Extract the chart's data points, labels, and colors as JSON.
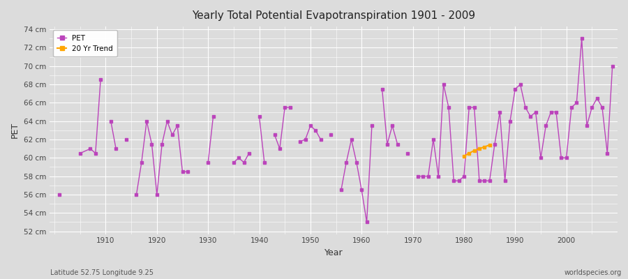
{
  "title": "Yearly Total Potential Evapotranspiration 1901 - 2009",
  "xlabel": "Year",
  "ylabel": "PET",
  "subtitle_left": "Latitude 52.75 Longitude 9.25",
  "watermark": "worldspecies.org",
  "ylim": [
    52,
    74
  ],
  "ytick_step": 2,
  "xlim": [
    1899,
    2010
  ],
  "pet_color": "#BB44BB",
  "trend_color": "#FFA500",
  "background_color": "#DCDCDC",
  "plot_bg_color": "#DCDCDC",
  "grid_color": "#FFFFFF",
  "years": [
    1901,
    1905,
    1907,
    1908,
    1909,
    1911,
    1912,
    1914,
    1916,
    1917,
    1918,
    1919,
    1920,
    1921,
    1922,
    1923,
    1924,
    1925,
    1926,
    1930,
    1931,
    1935,
    1936,
    1937,
    1938,
    1940,
    1941,
    1943,
    1944,
    1945,
    1946,
    1948,
    1949,
    1950,
    1951,
    1952,
    1954,
    1956,
    1957,
    1958,
    1959,
    1960,
    1961,
    1962,
    1964,
    1965,
    1966,
    1967,
    1969,
    1971,
    1972,
    1973,
    1974,
    1975,
    1976,
    1977,
    1978,
    1979,
    1980,
    1981,
    1982,
    1983,
    1984,
    1985,
    1986,
    1987,
    1988,
    1989,
    1990,
    1991,
    1992,
    1993,
    1994,
    1995,
    1996,
    1997,
    1998,
    1999,
    2000,
    2001,
    2002,
    2003,
    2004,
    2005,
    2006,
    2007,
    2008,
    2009
  ],
  "pet_values": [
    56.0,
    60.5,
    61.0,
    60.5,
    68.5,
    64.0,
    61.0,
    62.0,
    56.0,
    59.5,
    64.0,
    61.5,
    56.0,
    61.5,
    64.0,
    62.5,
    63.5,
    58.5,
    58.5,
    59.5,
    64.5,
    59.5,
    60.0,
    59.5,
    60.5,
    64.5,
    59.5,
    62.5,
    61.0,
    65.5,
    65.5,
    61.8,
    62.0,
    63.5,
    63.0,
    62.0,
    62.5,
    56.5,
    59.5,
    62.0,
    59.5,
    56.5,
    53.0,
    63.5,
    67.5,
    61.5,
    63.5,
    61.5,
    60.5,
    58.0,
    58.0,
    58.0,
    62.0,
    58.0,
    68.0,
    65.5,
    57.5,
    57.5,
    58.0,
    65.5,
    65.5,
    57.5,
    57.5,
    57.5,
    61.5,
    65.0,
    57.5,
    64.0,
    67.5,
    68.0,
    65.5,
    64.5,
    65.0,
    60.0,
    63.5,
    65.0,
    65.0,
    60.0,
    60.0,
    65.5,
    66.0,
    73.0,
    63.5,
    65.5,
    66.5,
    65.5,
    60.5,
    70.0
  ],
  "connected_segments": [
    [
      1901
    ],
    [
      1905,
      1907,
      1908,
      1909
    ],
    [
      1911,
      1912
    ],
    [
      1914
    ],
    [
      1916,
      1917,
      1918,
      1919,
      1920,
      1921,
      1922,
      1923,
      1924,
      1925,
      1926
    ],
    [
      1930,
      1931
    ],
    [
      1935,
      1936,
      1937,
      1938
    ],
    [
      1940,
      1941
    ],
    [
      1943,
      1944,
      1945,
      1946
    ],
    [
      1948,
      1949,
      1950,
      1951,
      1952
    ],
    [
      1954
    ],
    [
      1956,
      1957,
      1958,
      1959,
      1960,
      1961,
      1962
    ],
    [
      1964,
      1965,
      1966,
      1967
    ],
    [
      1969
    ],
    [
      1971,
      1972,
      1973,
      1974,
      1975,
      1976,
      1977,
      1978,
      1979,
      1980,
      1981,
      1982,
      1983,
      1984,
      1985,
      1986,
      1987,
      1988,
      1989,
      1990,
      1991,
      1992,
      1993,
      1994,
      1995,
      1996,
      1997,
      1998,
      1999,
      2000,
      2001,
      2002,
      2003,
      2004,
      2005,
      2006,
      2007,
      2008,
      2009
    ]
  ],
  "trend_years": [
    1980,
    1981,
    1982,
    1983,
    1984,
    1985
  ],
  "trend_values": [
    60.2,
    60.5,
    60.8,
    61.0,
    61.2,
    61.4
  ]
}
